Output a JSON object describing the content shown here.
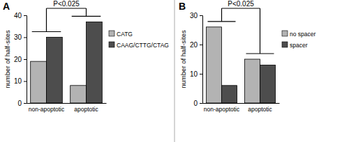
{
  "chart_data": [
    {
      "type": "bar",
      "title": "A",
      "y_label": "number of half-sites",
      "categories": [
        "non-apoptotic",
        "apoptotic"
      ],
      "series": [
        {
          "name": "CATG",
          "color": "#b3b3b3",
          "values": [
            19,
            8
          ]
        },
        {
          "name": "CAAG/CTTG/CTAG",
          "color": "#4d4d4d",
          "values": [
            30,
            37
          ]
        }
      ],
      "ylim": [
        0,
        40
      ],
      "yticks": [
        0,
        10,
        20,
        30,
        40
      ],
      "legend": "right",
      "annotation": "P<0.025"
    },
    {
      "type": "bar",
      "title": "B",
      "y_label": "number of half-sites",
      "categories": [
        "non-apoptotic",
        "apoptotic"
      ],
      "series": [
        {
          "name": "no spacer",
          "color": "#b3b3b3",
          "values": [
            26,
            15
          ]
        },
        {
          "name": "spacer",
          "color": "#4d4d4d",
          "values": [
            6,
            13
          ]
        }
      ],
      "ylim": [
        0,
        30
      ],
      "yticks": [
        0,
        10,
        20,
        30
      ],
      "legend": "right",
      "annotation": "P<0.025"
    }
  ]
}
